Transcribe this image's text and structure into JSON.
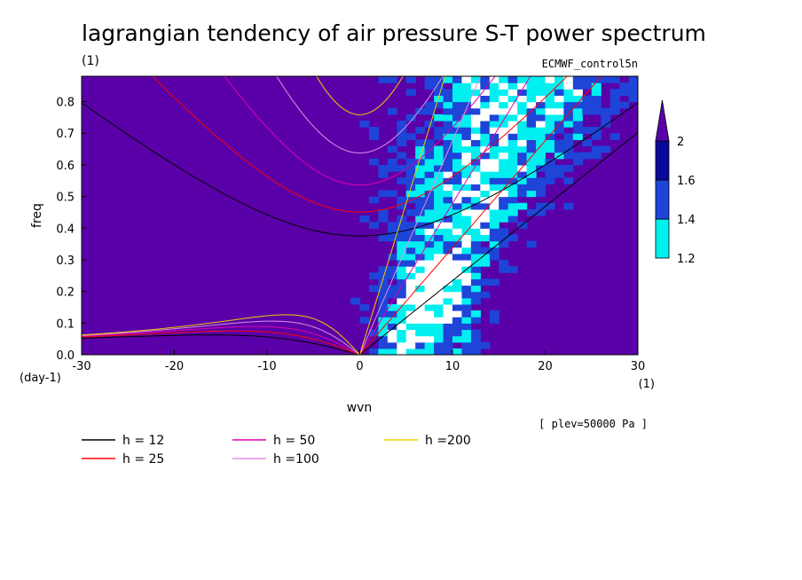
{
  "chart_data": {
    "type": "heatmap",
    "title": "lagrangian tendency of air pressure S-T power spectrum",
    "subtitle_unit": "(1)",
    "model_label": "ECMWF_control5n",
    "xlabel": "wvn",
    "ylabel": "freq",
    "x_unit": "(1)",
    "y_unit": "(day-1)",
    "xlim": [
      -30,
      30
    ],
    "ylim": [
      0,
      0.88
    ],
    "xticks": [
      -30,
      -20,
      -10,
      0,
      10,
      20,
      30
    ],
    "yticks": [
      0.0,
      0.1,
      0.2,
      0.3,
      0.4,
      0.5,
      0.6,
      0.7,
      0.8
    ],
    "colorbar": {
      "levels": [
        1.2,
        1.4,
        1.6,
        2
      ],
      "level_labels": [
        "1.2",
        "1.4",
        "1.6",
        "2"
      ],
      "colors": [
        "#5a00a8",
        "#1e44d8",
        "#00f0f0",
        "#ffffff",
        "#0a0a9a"
      ]
    },
    "annotation": "[ plev=50000 Pa ]",
    "dispersion_curves": [
      {
        "name": "h = 12",
        "h": 12,
        "color": "#000000"
      },
      {
        "name": "h = 25",
        "h": 25,
        "color": "#ff0000"
      },
      {
        "name": "h = 50",
        "h": 50,
        "color": "#e000b0"
      },
      {
        "name": "h =100",
        "h": 100,
        "color": "#e090e0"
      },
      {
        "name": "h =200",
        "h": 200,
        "color": "#e8d000"
      }
    ]
  }
}
